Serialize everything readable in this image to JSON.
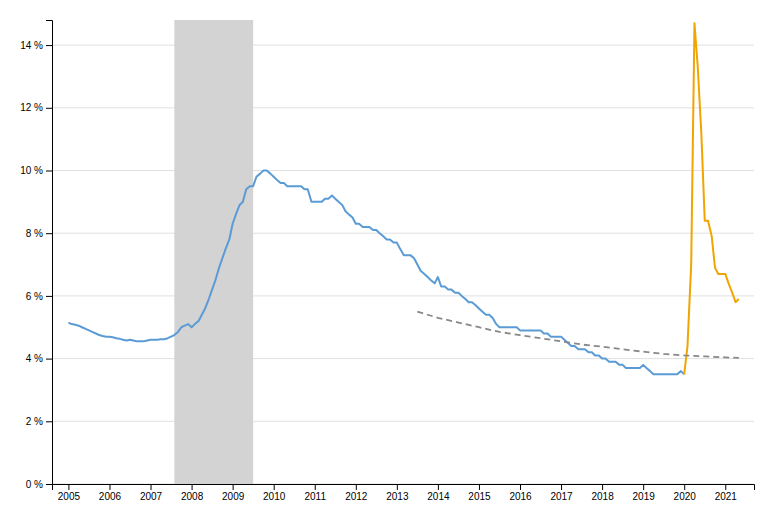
{
  "chart_data": {
    "type": "line",
    "xlim": [
      2004.6,
      2021.7
    ],
    "ylim": [
      0,
      14.8
    ],
    "xticks": [
      2005,
      2006,
      2007,
      2008,
      2009,
      2010,
      2011,
      2012,
      2013,
      2014,
      2015,
      2016,
      2017,
      2018,
      2019,
      2020,
      2021
    ],
    "yticks": [
      {
        "value": 0,
        "label": "0 %"
      },
      {
        "value": 2,
        "label": "2 %"
      },
      {
        "value": 4,
        "label": "4 %"
      },
      {
        "value": 6,
        "label": "6 %"
      },
      {
        "value": 8,
        "label": "8 %"
      },
      {
        "value": 10,
        "label": "10 %"
      },
      {
        "value": 12,
        "label": "12 %"
      },
      {
        "value": 14,
        "label": "14 %"
      }
    ],
    "grid": true,
    "bands": [
      {
        "x": [
          2007.58,
          2009.5
        ],
        "color": "#d3d3d3"
      }
    ],
    "series": [
      {
        "color": "#5b9bd5",
        "line_style": "solid",
        "x": [
          2005.0,
          2005.08,
          2005.17,
          2005.25,
          2005.33,
          2005.42,
          2005.5,
          2005.58,
          2005.67,
          2005.75,
          2005.83,
          2005.92,
          2006.0,
          2006.08,
          2006.17,
          2006.25,
          2006.33,
          2006.42,
          2006.5,
          2006.58,
          2006.67,
          2006.75,
          2006.83,
          2006.92,
          2007.0,
          2007.08,
          2007.17,
          2007.25,
          2007.33,
          2007.42,
          2007.5,
          2007.58,
          2007.67,
          2007.75,
          2007.83,
          2007.92,
          2008.0,
          2008.08,
          2008.17,
          2008.25,
          2008.33,
          2008.42,
          2008.5,
          2008.58,
          2008.67,
          2008.75,
          2008.83,
          2008.92,
          2009.0,
          2009.08,
          2009.17,
          2009.25,
          2009.33,
          2009.42,
          2009.5,
          2009.58,
          2009.67,
          2009.75,
          2009.83,
          2009.92,
          2010.0,
          2010.08,
          2010.17,
          2010.25,
          2010.33,
          2010.42,
          2010.5,
          2010.58,
          2010.67,
          2010.75,
          2010.83,
          2010.92,
          2011.0,
          2011.08,
          2011.17,
          2011.25,
          2011.33,
          2011.42,
          2011.5,
          2011.58,
          2011.67,
          2011.75,
          2011.83,
          2011.92,
          2012.0,
          2012.08,
          2012.17,
          2012.25,
          2012.33,
          2012.42,
          2012.5,
          2012.58,
          2012.67,
          2012.75,
          2012.83,
          2012.92,
          2013.0,
          2013.08,
          2013.17,
          2013.25,
          2013.33,
          2013.42,
          2013.5,
          2013.58,
          2013.67,
          2013.75,
          2013.83,
          2013.92,
          2014.0,
          2014.08,
          2014.17,
          2014.25,
          2014.33,
          2014.42,
          2014.5,
          2014.58,
          2014.67,
          2014.75,
          2014.83,
          2014.92,
          2015.0,
          2015.08,
          2015.17,
          2015.25,
          2015.33,
          2015.42,
          2015.5,
          2015.58,
          2015.67,
          2015.75,
          2015.83,
          2015.92,
          2016.0,
          2016.08,
          2016.17,
          2016.25,
          2016.33,
          2016.42,
          2016.5,
          2016.58,
          2016.67,
          2016.75,
          2016.83,
          2016.92,
          2017.0,
          2017.08,
          2017.17,
          2017.25,
          2017.33,
          2017.42,
          2017.5,
          2017.58,
          2017.67,
          2017.75,
          2017.83,
          2017.92,
          2018.0,
          2018.08,
          2018.17,
          2018.25,
          2018.33,
          2018.42,
          2018.5,
          2018.58,
          2018.67,
          2018.75,
          2018.83,
          2018.92,
          2019.0,
          2019.08,
          2019.17,
          2019.25,
          2019.33,
          2019.42,
          2019.5,
          2019.58,
          2019.67,
          2019.75,
          2019.83,
          2019.92,
          2020.0
        ],
        "values": [
          5.15,
          5.1,
          5.08,
          5.05,
          5.0,
          4.95,
          4.9,
          4.85,
          4.8,
          4.75,
          4.72,
          4.7,
          4.7,
          4.68,
          4.65,
          4.63,
          4.6,
          4.58,
          4.6,
          4.58,
          4.55,
          4.55,
          4.55,
          4.58,
          4.6,
          4.6,
          4.6,
          4.62,
          4.62,
          4.65,
          4.7,
          4.75,
          4.85,
          5.0,
          5.05,
          5.1,
          5.0,
          5.1,
          5.2,
          5.4,
          5.6,
          5.9,
          6.2,
          6.5,
          6.9,
          7.2,
          7.5,
          7.8,
          8.3,
          8.6,
          8.9,
          9.0,
          9.4,
          9.5,
          9.5,
          9.8,
          9.9,
          10.0,
          10.0,
          9.9,
          9.8,
          9.7,
          9.6,
          9.6,
          9.5,
          9.5,
          9.5,
          9.5,
          9.5,
          9.4,
          9.4,
          9.0,
          9.0,
          9.0,
          9.0,
          9.1,
          9.1,
          9.2,
          9.1,
          9.0,
          8.9,
          8.7,
          8.6,
          8.5,
          8.3,
          8.3,
          8.2,
          8.2,
          8.2,
          8.1,
          8.1,
          8.0,
          7.9,
          7.8,
          7.8,
          7.7,
          7.7,
          7.5,
          7.3,
          7.3,
          7.3,
          7.2,
          7.0,
          6.8,
          6.7,
          6.6,
          6.5,
          6.4,
          6.6,
          6.3,
          6.3,
          6.2,
          6.2,
          6.1,
          6.1,
          6.0,
          5.9,
          5.8,
          5.8,
          5.7,
          5.6,
          5.5,
          5.4,
          5.4,
          5.3,
          5.1,
          5.0,
          5.0,
          5.0,
          5.0,
          5.0,
          5.0,
          4.9,
          4.9,
          4.9,
          4.9,
          4.9,
          4.9,
          4.9,
          4.8,
          4.8,
          4.7,
          4.7,
          4.7,
          4.7,
          4.6,
          4.5,
          4.4,
          4.4,
          4.3,
          4.3,
          4.3,
          4.2,
          4.2,
          4.1,
          4.1,
          4.0,
          4.0,
          3.9,
          3.9,
          3.9,
          3.8,
          3.8,
          3.7,
          3.7,
          3.7,
          3.7,
          3.7,
          3.8,
          3.7,
          3.6,
          3.5,
          3.5,
          3.5,
          3.5,
          3.5,
          3.5,
          3.5,
          3.5,
          3.6,
          3.5
        ]
      },
      {
        "color": "#f0a500",
        "line_style": "solid",
        "x": [
          2020.0,
          2020.08,
          2020.17,
          2020.25,
          2020.33,
          2020.42,
          2020.5,
          2020.58,
          2020.67,
          2020.75,
          2020.83,
          2020.92,
          2021.0,
          2021.08,
          2021.17,
          2021.25,
          2021.33
        ],
        "values": [
          3.5,
          4.4,
          7.0,
          14.7,
          13.3,
          11.1,
          8.4,
          8.4,
          7.9,
          6.9,
          6.7,
          6.7,
          6.7,
          6.4,
          6.1,
          5.8,
          5.9
        ]
      },
      {
        "color": "#888888",
        "line_style": "dashed",
        "x": [
          2013.5,
          2014.0,
          2014.5,
          2015.0,
          2015.5,
          2016.0,
          2016.5,
          2017.0,
          2017.5,
          2018.0,
          2018.5,
          2019.0,
          2019.5,
          2020.0,
          2020.5,
          2021.0,
          2021.33
        ],
        "values": [
          5.5,
          5.3,
          5.15,
          5.0,
          4.85,
          4.75,
          4.65,
          4.55,
          4.45,
          4.38,
          4.3,
          4.22,
          4.15,
          4.1,
          4.07,
          4.04,
          4.02
        ]
      }
    ]
  }
}
